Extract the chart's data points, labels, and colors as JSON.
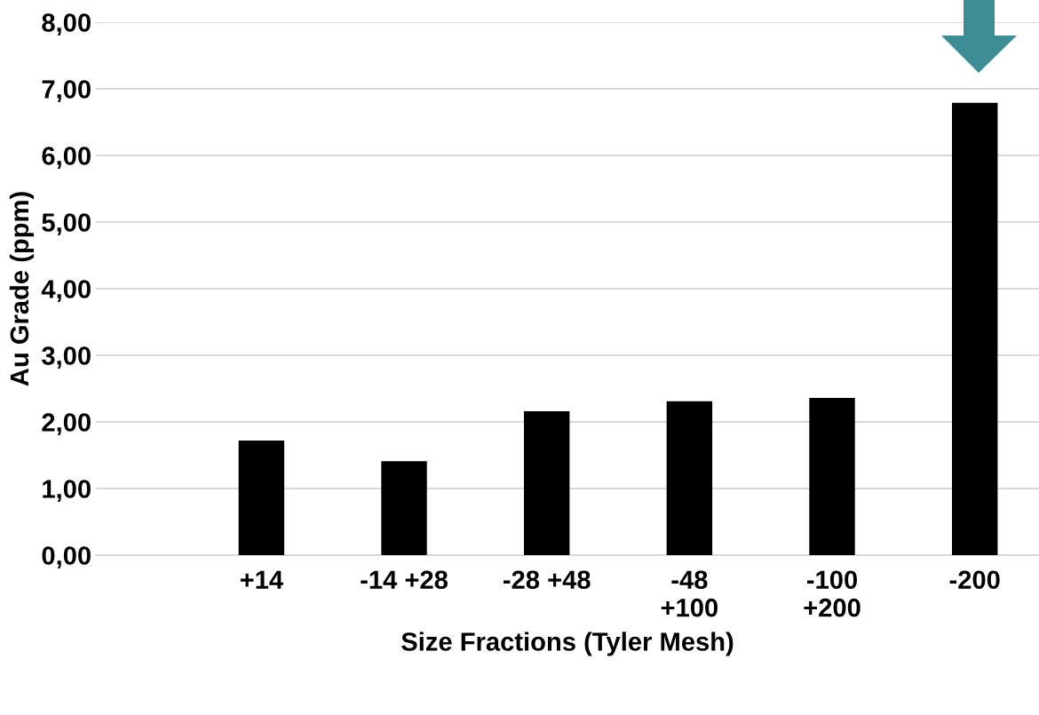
{
  "chart_data": {
    "type": "bar",
    "xlabel": "Size Fractions (Tyler Mesh)",
    "ylabel": "Au Grade (ppm)",
    "categories": [
      "+14",
      "-14 +28",
      "-28 +48",
      "-48\n+100",
      "-100\n+200",
      "-200"
    ],
    "values": [
      1.72,
      1.41,
      2.16,
      2.31,
      2.36,
      6.79
    ],
    "color": "#000000",
    "ylim": [
      0,
      8
    ],
    "yticks": [
      {
        "value": 0,
        "label": "0,00"
      },
      {
        "value": 1,
        "label": "1,00"
      },
      {
        "value": 2,
        "label": "2,00"
      },
      {
        "value": 3,
        "label": "3,00"
      },
      {
        "value": 4,
        "label": "4,00"
      },
      {
        "value": 5,
        "label": "5,00"
      },
      {
        "value": 6,
        "label": "6,00"
      },
      {
        "value": 7,
        "label": "7,00"
      },
      {
        "value": 8,
        "label": "8,00"
      }
    ],
    "grid": "y"
  }
}
